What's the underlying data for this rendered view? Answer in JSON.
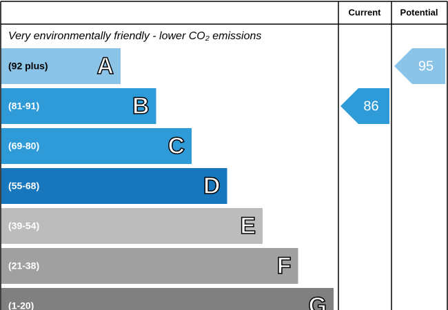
{
  "chart_data": {
    "type": "epc",
    "title": "Very environmentally friendly - lower CO₂ emissions",
    "columns": [
      "Current",
      "Potential"
    ],
    "bands": [
      {
        "range": "(92 plus)",
        "letter": "A",
        "color": "#8cc4e8"
      },
      {
        "range": "(81-91)",
        "letter": "B",
        "color": "#2e9bd8"
      },
      {
        "range": "(69-80)",
        "letter": "C",
        "color": "#2e9bd8"
      },
      {
        "range": "(55-68)",
        "letter": "D",
        "color": "#1876bc"
      },
      {
        "range": "(39-54)",
        "letter": "E",
        "color": "#bcbcbc"
      },
      {
        "range": "(21-38)",
        "letter": "F",
        "color": "#a0a0a0"
      },
      {
        "range": "(1-20)",
        "letter": "G",
        "color": "#808080"
      }
    ],
    "current": 86,
    "potential": 95
  }
}
